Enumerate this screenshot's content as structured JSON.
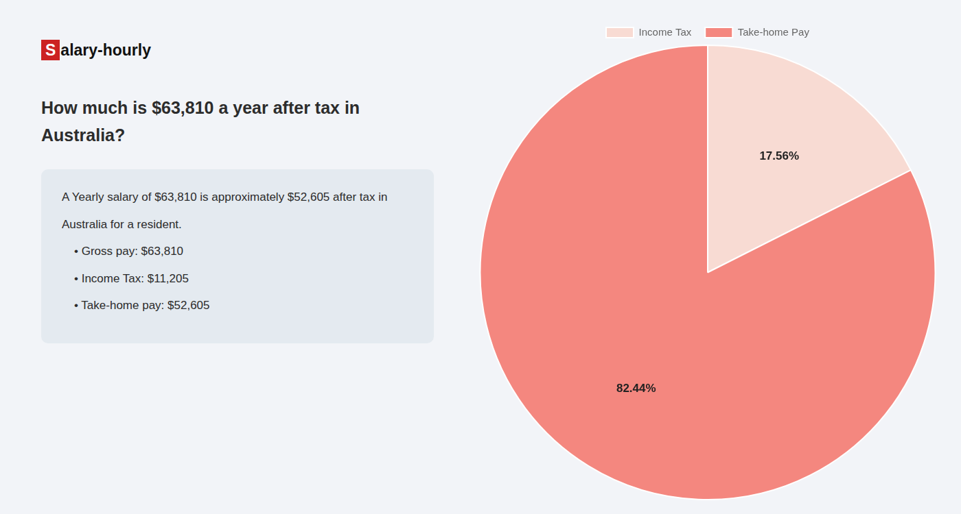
{
  "chart_data": {
    "type": "pie",
    "title": [
      "How much is $63,810 a year after tax in",
      "Australia?"
    ],
    "annotations": [
      "Salary-hourly",
      "A Yearly salary of $63,810 is approximately $52,605 after tax in",
      "Australia for a resident.",
      "• Gross pay: $63,810",
      "• Income Tax: $11,205",
      "• Take-home pay: $52,605"
    ],
    "categories": [
      "Income Tax",
      "Take-home Pay"
    ],
    "values": [
      17.56,
      82.44
    ],
    "value_labels": [
      "17.56%",
      "82.44%"
    ],
    "colors": [
      "#f8dbd3",
      "#f4877f"
    ],
    "data_labels": true,
    "legend": "top"
  }
}
